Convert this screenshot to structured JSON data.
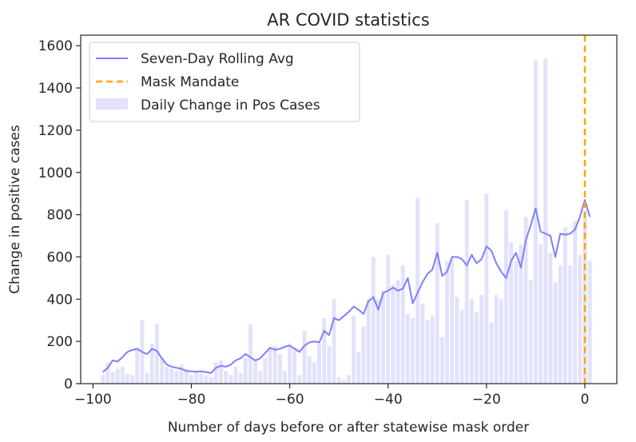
{
  "chart_data": {
    "type": "bar",
    "title": "AR COVID statistics",
    "xlabel": "Number of days before or after statewise mask order",
    "ylabel": "Change in positive cases",
    "xlim": [
      -102.5,
      6.5
    ],
    "ylim": [
      0,
      1650
    ],
    "xticks": [
      -100,
      -80,
      -60,
      -40,
      -20,
      0
    ],
    "yticks": [
      0,
      200,
      400,
      600,
      800,
      1000,
      1200,
      1400,
      1600
    ],
    "grid": false,
    "legend_position": "top-left",
    "legend": [
      {
        "label": "Seven-Day Rolling Avg",
        "kind": "line",
        "color": "#7b7bff"
      },
      {
        "label": "Mask Mandate",
        "kind": "dashed-line",
        "color": "#ffa733"
      },
      {
        "label": "Daily Change in Pos Cases",
        "kind": "patch",
        "color": "#e0e0fc"
      }
    ],
    "colors": {
      "rolling": "#7f7fff",
      "mandate": "#ffa500",
      "bars": "#e2e2fc",
      "axis": "#262626"
    },
    "series": [
      {
        "name": "Daily Change in Pos Cases",
        "kind": "bar",
        "x": [
          -98,
          -97,
          -96,
          -95,
          -94,
          -93,
          -92,
          -91,
          -90,
          -89,
          -88,
          -87,
          -86,
          -85,
          -84,
          -83,
          -82,
          -81,
          -80,
          -79,
          -78,
          -77,
          -76,
          -75,
          -74,
          -73,
          -72,
          -71,
          -70,
          -69,
          -68,
          -67,
          -66,
          -65,
          -64,
          -63,
          -62,
          -61,
          -60,
          -59,
          -58,
          -57,
          -56,
          -55,
          -54,
          -53,
          -52,
          -51,
          -50,
          -49,
          -48,
          -47,
          -46,
          -45,
          -44,
          -43,
          -42,
          -41,
          -40,
          -39,
          -38,
          -37,
          -36,
          -35,
          -34,
          -33,
          -32,
          -31,
          -30,
          -29,
          -28,
          -27,
          -26,
          -25,
          -24,
          -23,
          -22,
          -21,
          -20,
          -19,
          -18,
          -17,
          -16,
          -15,
          -14,
          -13,
          -12,
          -11,
          -10,
          -9,
          -8,
          -7,
          -6,
          -5,
          -4,
          -3,
          -2,
          -1,
          0,
          1
        ],
        "values": [
          40,
          100,
          55,
          70,
          80,
          45,
          40,
          160,
          300,
          50,
          190,
          280,
          120,
          80,
          70,
          60,
          90,
          70,
          40,
          60,
          50,
          40,
          30,
          100,
          110,
          60,
          40,
          80,
          50,
          120,
          280,
          110,
          60,
          120,
          170,
          180,
          140,
          60,
          190,
          170,
          40,
          250,
          130,
          100,
          190,
          310,
          180,
          400,
          30,
          20,
          40,
          320,
          150,
          270,
          400,
          600,
          400,
          440,
          610,
          470,
          490,
          560,
          330,
          310,
          880,
          380,
          300,
          320,
          760,
          220,
          580,
          590,
          410,
          350,
          870,
          400,
          340,
          420,
          900,
          290,
          420,
          400,
          820,
          670,
          580,
          660,
          790,
          490,
          1530,
          660,
          1540,
          620,
          480,
          560,
          740,
          560,
          770,
          610,
          820,
          580
        ]
      },
      {
        "name": "Seven-Day Rolling Avg",
        "kind": "line",
        "x": [
          -98,
          -97,
          -96,
          -95,
          -94,
          -93,
          -92,
          -91,
          -90,
          -89,
          -88,
          -87,
          -86,
          -85,
          -84,
          -83,
          -82,
          -81,
          -80,
          -79,
          -78,
          -77,
          -76,
          -75,
          -74,
          -73,
          -72,
          -71,
          -70,
          -69,
          -68,
          -67,
          -66,
          -65,
          -64,
          -63,
          -62,
          -61,
          -60,
          -59,
          -58,
          -57,
          -56,
          -55,
          -54,
          -53,
          -52,
          -51,
          -50,
          -49,
          -48,
          -47,
          -46,
          -45,
          -44,
          -43,
          -42,
          -41,
          -40,
          -39,
          -38,
          -37,
          -36,
          -35,
          -34,
          -33,
          -32,
          -31,
          -30,
          -29,
          -28,
          -27,
          -26,
          -25,
          -24,
          -23,
          -22,
          -21,
          -20,
          -19,
          -18,
          -17,
          -16,
          -15,
          -14,
          -13,
          -12,
          -11,
          -10,
          -9,
          -8,
          -7,
          -6,
          -5,
          -4,
          -3,
          -2,
          -1,
          0,
          1
        ],
        "values": [
          55,
          75,
          110,
          105,
          125,
          150,
          160,
          165,
          150,
          140,
          165,
          155,
          120,
          90,
          80,
          75,
          70,
          60,
          58,
          57,
          58,
          55,
          50,
          75,
          85,
          80,
          90,
          110,
          120,
          140,
          125,
          110,
          120,
          145,
          170,
          160,
          165,
          175,
          180,
          165,
          150,
          180,
          195,
          200,
          195,
          250,
          230,
          310,
          300,
          320,
          340,
          365,
          350,
          330,
          390,
          410,
          350,
          430,
          440,
          455,
          440,
          450,
          500,
          380,
          430,
          480,
          520,
          540,
          620,
          510,
          530,
          600,
          600,
          590,
          560,
          610,
          570,
          590,
          650,
          630,
          570,
          530,
          500,
          580,
          620,
          550,
          680,
          750,
          830,
          720,
          710,
          700,
          600,
          710,
          705,
          710,
          730,
          790,
          870,
          790
        ]
      }
    ],
    "annotations": [
      {
        "type": "vline",
        "x": 0,
        "label": "Mask Mandate"
      }
    ]
  }
}
